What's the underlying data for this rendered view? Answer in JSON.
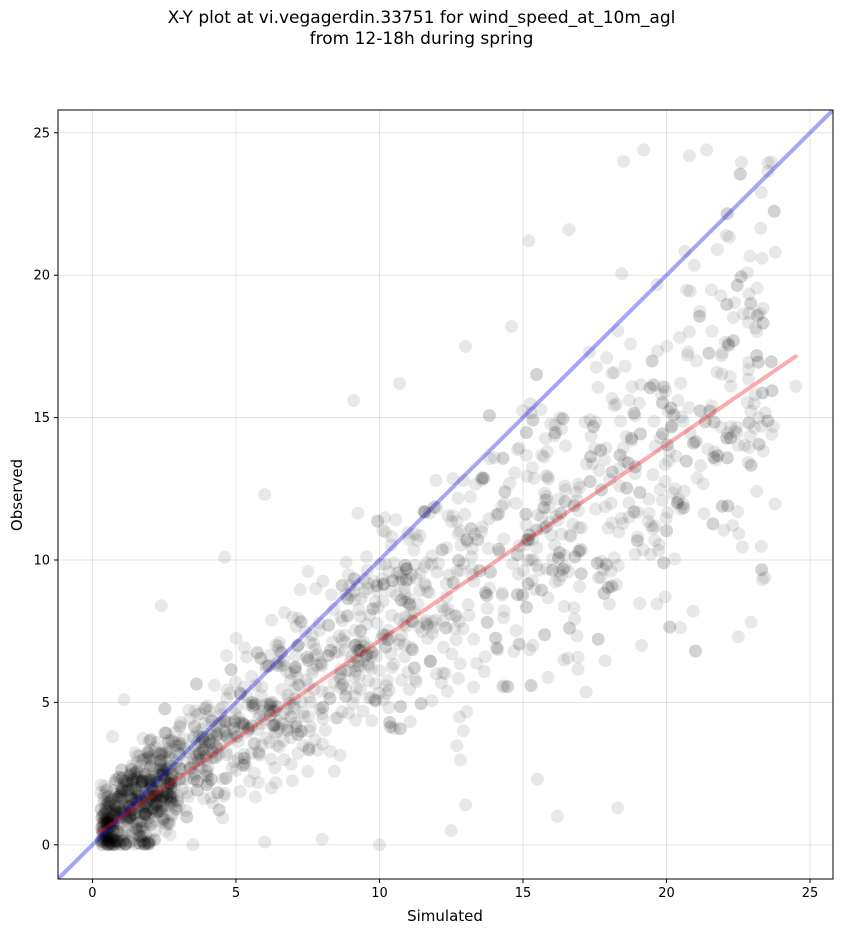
{
  "title_line1": "X-Y plot at vi.vegagerdin.33751 for wind_speed_at_10m_agl",
  "title_line2": "from 12-18h during spring",
  "chart_data": {
    "type": "scatter",
    "xlabel": "Simulated",
    "ylabel": "Observed",
    "xlim": [
      -1.2,
      25.8
    ],
    "ylim": [
      -1.2,
      25.8
    ],
    "xticks": [
      0,
      5,
      10,
      15,
      20,
      25
    ],
    "yticks": [
      0,
      5,
      10,
      15,
      20,
      25
    ],
    "grid": true,
    "point_color": "#000000",
    "point_alpha": 0.09,
    "one_to_one_line": {
      "color": "#0000ee",
      "x": [
        -1.2,
        25.8
      ],
      "y": [
        -1.2,
        25.8
      ]
    },
    "fit_line": {
      "color": "#ee1111",
      "x": [
        0.25,
        24.5
      ],
      "y": [
        0.45,
        17.15
      ]
    },
    "sample_points": [
      [
        1.1,
        5.1
      ],
      [
        18.3,
        1.3
      ],
      [
        16.2,
        1.0
      ],
      [
        20.8,
        24.2
      ],
      [
        21.4,
        24.4
      ],
      [
        19.2,
        24.4
      ],
      [
        18.5,
        24.0
      ],
      [
        16.6,
        21.6
      ],
      [
        15.2,
        21.2
      ],
      [
        22.5,
        7.3
      ],
      [
        23.3,
        14.7
      ],
      [
        24.5,
        16.1
      ],
      [
        2.4,
        8.4
      ],
      [
        4.6,
        10.1
      ],
      [
        6.0,
        12.3
      ],
      [
        9.1,
        15.6
      ],
      [
        10.7,
        16.2
      ],
      [
        13.0,
        17.5
      ],
      [
        14.6,
        18.2
      ],
      [
        15.5,
        2.3
      ],
      [
        13.0,
        1.4
      ],
      [
        12.5,
        0.5
      ],
      [
        10.0,
        0.0
      ],
      [
        8.0,
        0.2
      ],
      [
        6.0,
        0.1
      ],
      [
        3.5,
        0.0
      ],
      [
        0.7,
        3.8
      ],
      [
        0.3,
        2.1
      ]
    ]
  }
}
